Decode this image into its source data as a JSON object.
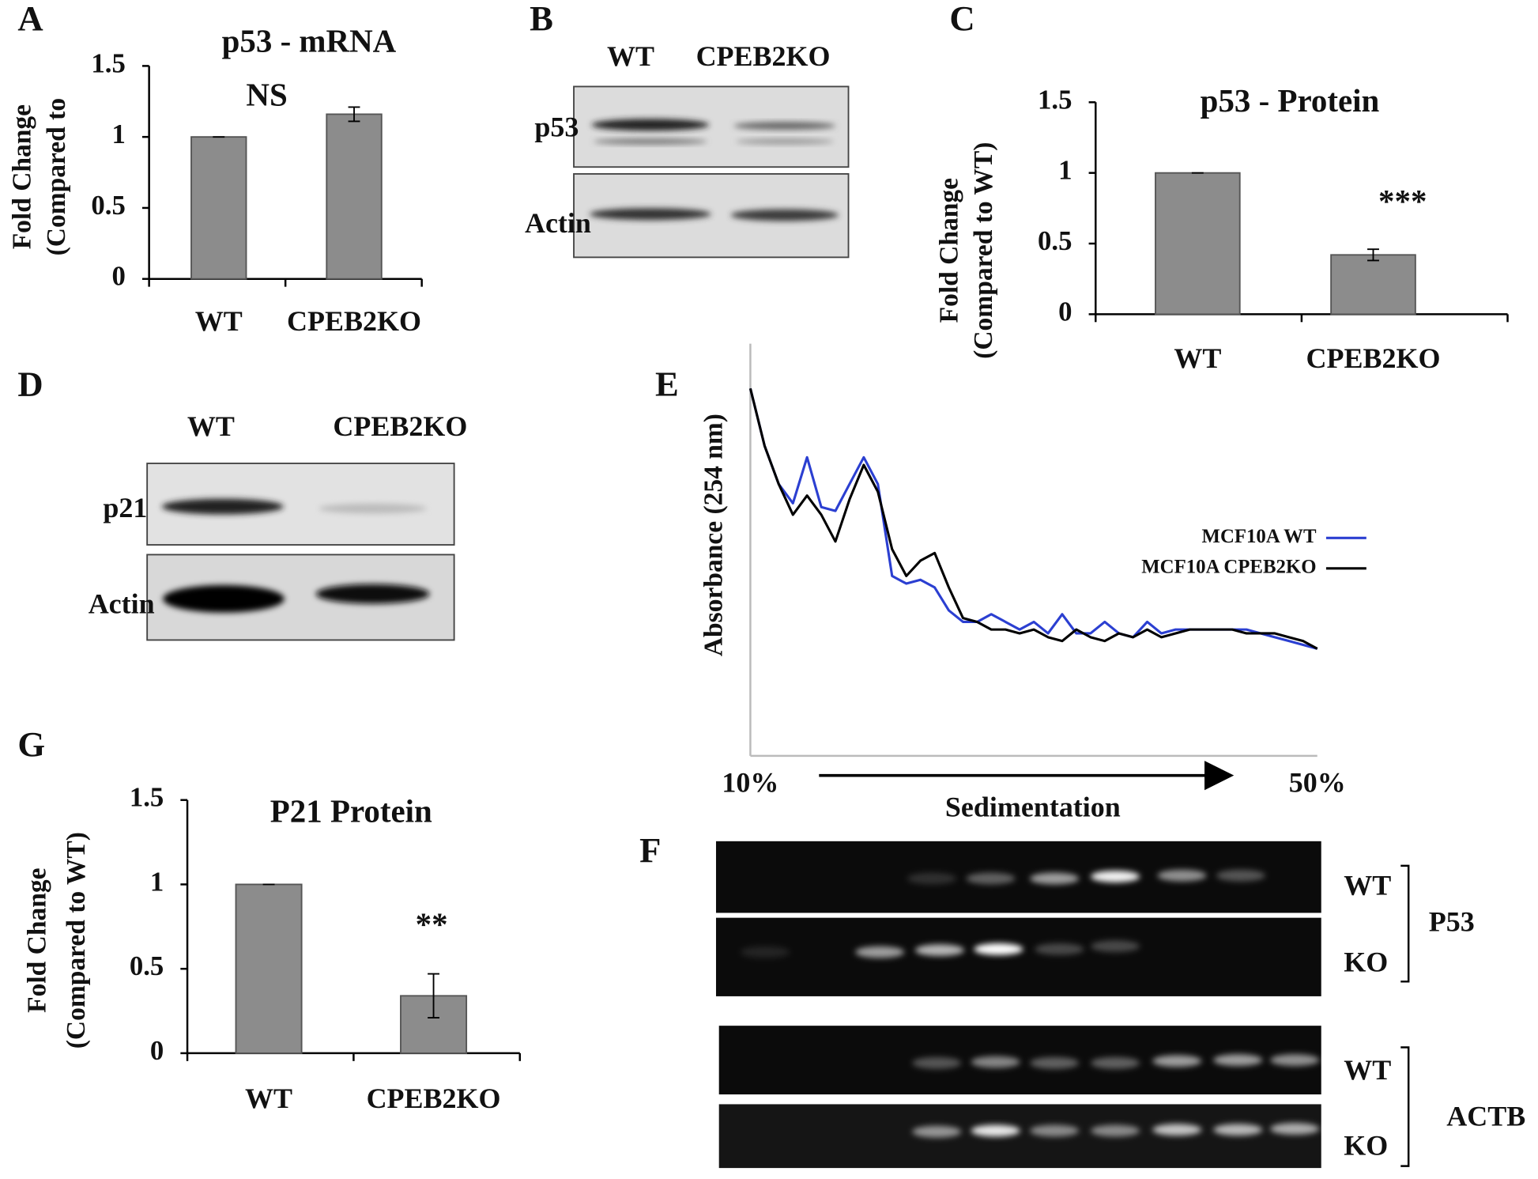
{
  "chart_data": [
    {
      "panel": "A",
      "type": "bar",
      "title": "p53 - mRNA",
      "ylabel": [
        "Fold Change",
        "(Compared to"
      ],
      "categories": [
        "WT",
        "CPEB2KO"
      ],
      "values": [
        1,
        1.16
      ],
      "errors": [
        0,
        0.05
      ],
      "annotation": "NS",
      "color": "#8c8c8c",
      "ylim": [
        0,
        1.5
      ],
      "yticks": [
        0,
        0.5,
        1,
        1.5
      ]
    },
    {
      "panel": "C",
      "type": "bar",
      "title": "p53 - Protein",
      "ylabel": [
        "Fold Change",
        "(Compared to WT)"
      ],
      "categories": [
        "WT",
        "CPEB2KO"
      ],
      "values": [
        1,
        0.42
      ],
      "errors": [
        0,
        0.04
      ],
      "annotation": "***",
      "color": "#8c8c8c",
      "ylim": [
        0,
        1.5
      ],
      "yticks": [
        0,
        0.5,
        1,
        1.5
      ]
    },
    {
      "panel": "E",
      "type": "line",
      "ylabel": "Absorbance (254 nm)",
      "xlabel": "Sedimentation",
      "x": [
        10,
        11,
        12,
        13,
        14,
        15,
        16,
        17,
        18,
        19,
        20,
        21,
        22,
        23,
        24,
        25,
        26,
        27,
        28,
        29,
        30,
        31,
        32,
        33,
        34,
        35,
        36,
        37,
        38,
        39,
        40,
        41,
        42,
        43,
        44,
        45,
        46,
        47,
        48,
        49,
        50
      ],
      "xlim": [
        10,
        50
      ],
      "xticks": [
        {
          "value": 10,
          "label": "10%"
        },
        {
          "value": 50,
          "label": "50%"
        }
      ],
      "ylim": [
        0,
        100
      ],
      "series": [
        {
          "name": "MCF10A WT",
          "color": "#2b3fd1",
          "values": [
            96,
            81,
            71,
            66,
            78,
            65,
            64,
            71,
            78,
            71,
            47,
            45,
            46,
            44,
            38,
            35,
            35,
            37,
            35,
            33,
            35,
            32,
            37,
            32,
            32,
            35,
            32,
            31,
            35,
            32,
            33,
            33,
            33,
            33,
            33,
            33,
            32,
            31,
            30,
            29,
            28
          ]
        },
        {
          "name": "MCF10A CPEB2KO",
          "color": "#000000",
          "values": [
            96,
            81,
            71,
            63,
            68,
            63,
            56,
            67,
            76,
            69,
            54,
            47,
            51,
            53,
            44,
            36,
            35,
            33,
            33,
            32,
            33,
            31,
            30,
            33,
            31,
            30,
            32,
            31,
            33,
            31,
            32,
            33,
            33,
            33,
            33,
            32,
            32,
            32,
            31,
            30,
            28
          ]
        }
      ]
    },
    {
      "panel": "G",
      "type": "bar",
      "title": "P21 Protein",
      "ylabel": [
        "Fold Change",
        "(Compared to WT)"
      ],
      "categories": [
        "WT",
        "CPEB2KO"
      ],
      "values": [
        1,
        0.34
      ],
      "errors": [
        0,
        0.13
      ],
      "annotation": "**",
      "color": "#8c8c8c",
      "ylim": [
        0,
        1.5
      ],
      "yticks": [
        0,
        0.5,
        1,
        1.5
      ]
    }
  ],
  "blots": [
    {
      "panel": "B",
      "lanes": [
        "WT",
        "CPEB2KO"
      ],
      "rows": [
        "p53",
        "Actin"
      ]
    },
    {
      "panel": "D",
      "lanes": [
        "WT",
        "CPEB2KO"
      ],
      "rows": [
        "p21",
        "Actin"
      ]
    },
    {
      "panel": "F",
      "groups": [
        {
          "rows": [
            "WT",
            "KO"
          ],
          "label": "P53"
        },
        {
          "rows": [
            "WT",
            "KO"
          ],
          "label": "ACTB"
        }
      ]
    }
  ]
}
